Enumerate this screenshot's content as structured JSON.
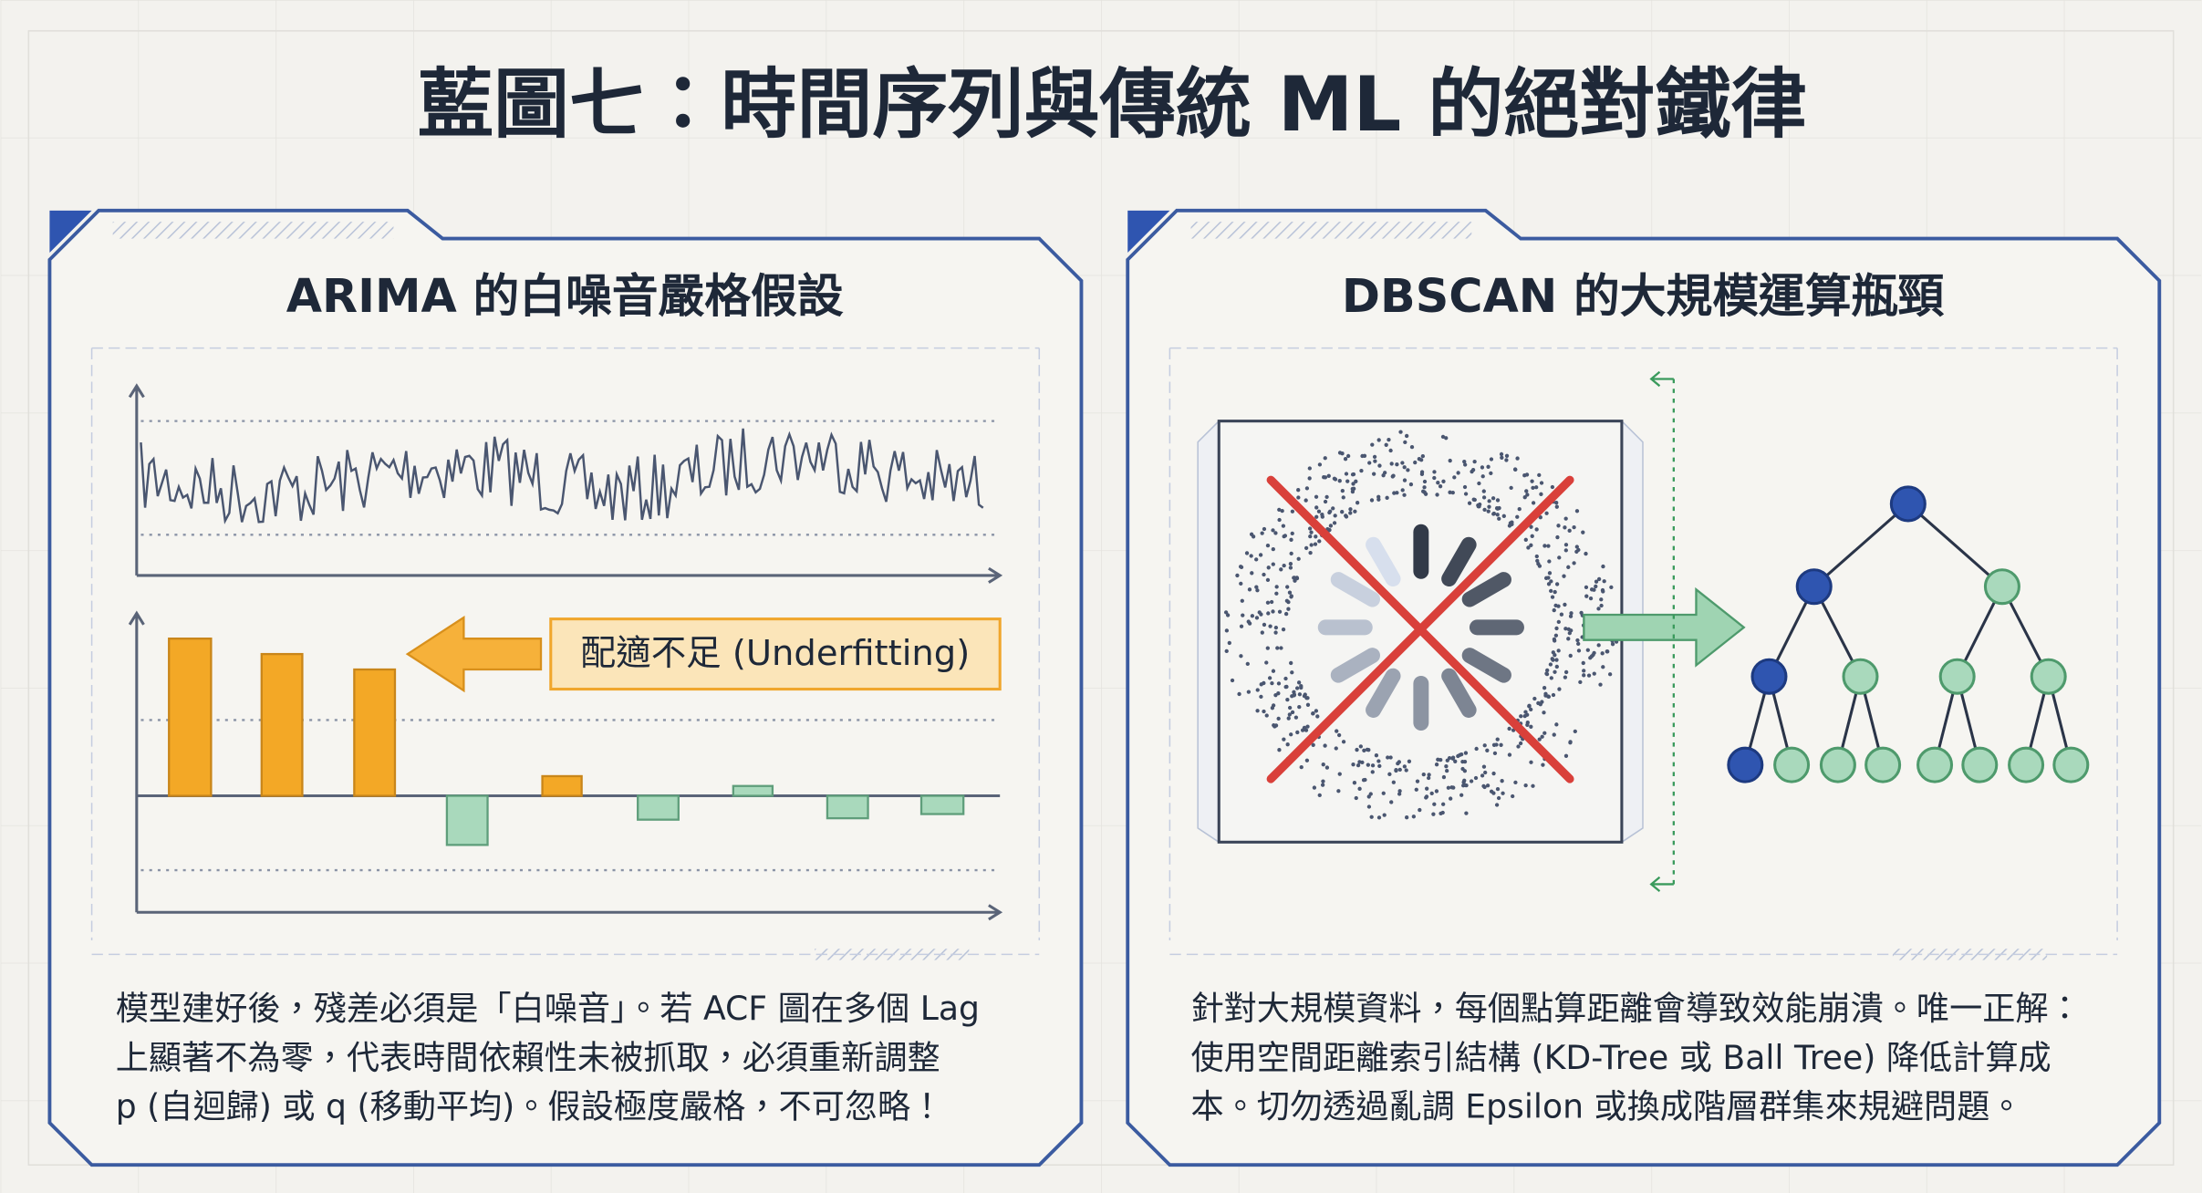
{
  "header": {
    "title": "藍圖七：時間序列與傳統 ML 的絕對鐵律"
  },
  "panels": [
    {
      "heading": "ARIMA 的白噪音嚴格假設",
      "label": "配適不足 (Underfitting)",
      "description": [
        "模型建好後，殘差必須是「白噪音」。若 ACF 圖在多個 Lag",
        "上顯著不為零，代表時間依賴性未被抓取，必須重新調整",
        "p (自迴歸) 或 q (移動平均)。假設極度嚴格，不可忽略！"
      ]
    },
    {
      "heading": "DBSCAN 的大規模運算瓶頸",
      "description": [
        "針對大規模資料，每個點算距離會導致效能崩潰。唯一正解：",
        "使用空間距離索引結構 (KD-Tree 或 Ball Tree) 降低計算成",
        "本。切勿透過亂調 Epsilon 或換成階層群集來規避問題。"
      ]
    }
  ]
}
